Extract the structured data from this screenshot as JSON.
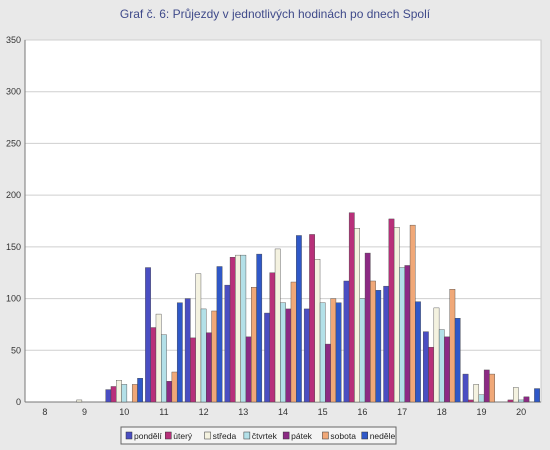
{
  "chart_data": {
    "type": "bar",
    "title": "Graf č. 6: Průjezdy v jednotlivých hodinách po dnech Spolí",
    "xlabel": "",
    "ylabel": "",
    "ylim": [
      0,
      350
    ],
    "yticks": [
      0,
      50,
      100,
      150,
      200,
      250,
      300,
      350
    ],
    "grid": true,
    "legend_position": "bottom",
    "categories": [
      "8",
      "9",
      "10",
      "11",
      "12",
      "13",
      "14",
      "15",
      "16",
      "17",
      "18",
      "19",
      "20"
    ],
    "series": [
      {
        "name": "pondělí",
        "color": "#4a4ec2",
        "values": [
          0,
          0,
          12,
          130,
          100,
          113,
          86,
          90,
          117,
          112,
          68,
          27,
          0
        ]
      },
      {
        "name": "úterý",
        "color": "#b8307a",
        "values": [
          0,
          0,
          15,
          72,
          62,
          140,
          125,
          162,
          183,
          177,
          53,
          2,
          2
        ]
      },
      {
        "name": "středa",
        "color": "#f4f2e0",
        "values": [
          0,
          2,
          21,
          85,
          124,
          142,
          148,
          138,
          168,
          169,
          91,
          17,
          14
        ]
      },
      {
        "name": "čtvrtek",
        "color": "#b3e0e8",
        "values": [
          0,
          0,
          17,
          65,
          90,
          142,
          96,
          96,
          100,
          130,
          70,
          7,
          2
        ]
      },
      {
        "name": "pátek",
        "color": "#8c2a84",
        "values": [
          0,
          0,
          0,
          20,
          67,
          63,
          90,
          56,
          144,
          132,
          63,
          31,
          5
        ]
      },
      {
        "name": "sobota",
        "color": "#f0a878",
        "values": [
          0,
          0,
          17,
          29,
          88,
          111,
          116,
          100,
          117,
          171,
          109,
          27,
          0
        ]
      },
      {
        "name": "neděle",
        "color": "#2f58c8",
        "values": [
          0,
          0,
          23,
          96,
          131,
          143,
          161,
          96,
          108,
          97,
          81,
          0,
          13
        ]
      }
    ]
  }
}
